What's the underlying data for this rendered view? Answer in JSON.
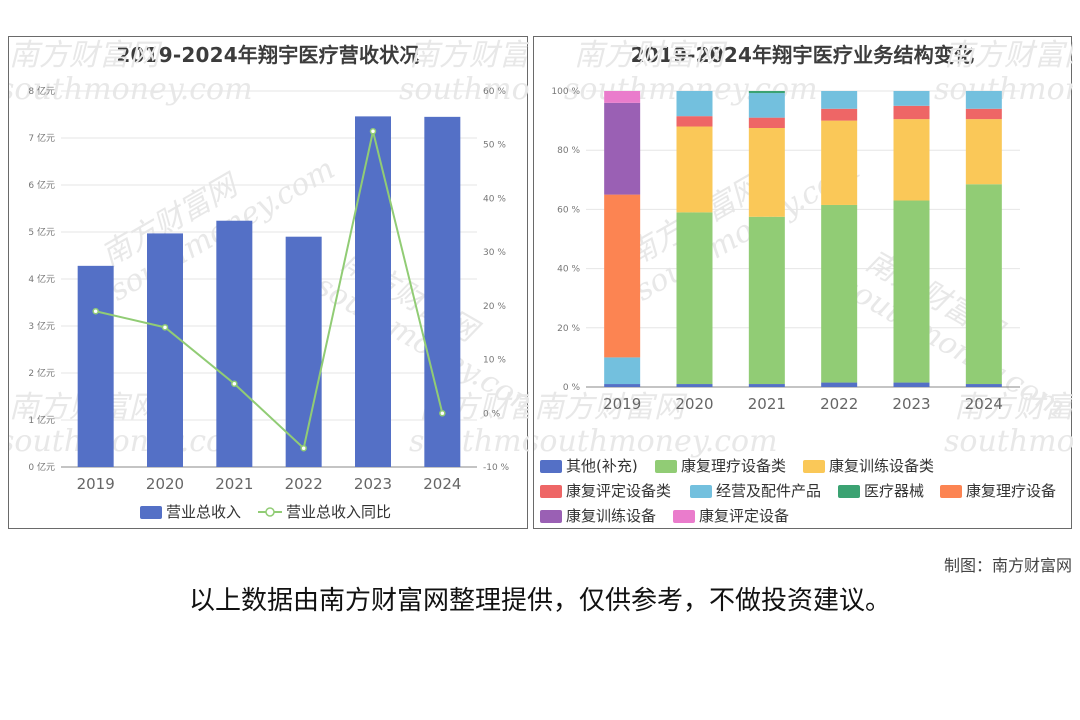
{
  "chart_data": [
    {
      "type": "bar+line",
      "title": "2019-2024年翔宇医疗营收状况",
      "categories": [
        "2019",
        "2020",
        "2021",
        "2022",
        "2023",
        "2024"
      ],
      "series": [
        {
          "name": "营业总收入",
          "type": "bar",
          "axis": "left",
          "color": "#5470c6",
          "values": [
            4.28,
            4.97,
            5.24,
            4.9,
            7.46,
            7.45
          ]
        },
        {
          "name": "营业总收入同比",
          "type": "line",
          "axis": "right",
          "color": "#91cc75",
          "values": [
            19.0,
            16.0,
            5.5,
            -6.5,
            52.5,
            0.0
          ]
        }
      ],
      "y_left": {
        "ticks": [
          "0 亿元",
          "1 亿元",
          "2 亿元",
          "3 亿元",
          "4 亿元",
          "5 亿元",
          "6 亿元",
          "7 亿元",
          "8 亿元"
        ],
        "ylim": [
          0,
          8
        ]
      },
      "y_right": {
        "ticks": [
          "-10 %",
          "0 %",
          "10 %",
          "20 %",
          "30 %",
          "40 %",
          "50 %",
          "60 %"
        ],
        "ylim": [
          -10,
          60
        ]
      },
      "grid": true,
      "legend": "bottom-center"
    },
    {
      "type": "stacked-bar",
      "title": "2019-2024年翔宇医疗业务结构变化",
      "categories": [
        "2019",
        "2020",
        "2021",
        "2022",
        "2023",
        "2024"
      ],
      "series": [
        {
          "name": "其他(补充)",
          "color": "#5470c6",
          "values": [
            1.0,
            1.0,
            1.0,
            1.5,
            1.5,
            1.0
          ]
        },
        {
          "name": "康复理疗设备类",
          "color": "#91cc75",
          "values": [
            0,
            58.0,
            56.5,
            60.0,
            61.5,
            67.5
          ]
        },
        {
          "name": "康复训练设备类",
          "color": "#fac858",
          "values": [
            0,
            29.0,
            30.0,
            28.5,
            27.5,
            22.0
          ]
        },
        {
          "name": "康复评定设备类",
          "color": "#ee6666",
          "values": [
            0,
            3.5,
            3.5,
            4.0,
            4.5,
            3.5
          ]
        },
        {
          "name": "经营及配件产品",
          "color": "#73c0de",
          "values": [
            9.0,
            8.5,
            8.3,
            6.0,
            5.0,
            6.0
          ]
        },
        {
          "name": "医疗器械",
          "color": "#3ba272",
          "values": [
            0,
            0,
            0.7,
            0,
            0,
            0
          ]
        },
        {
          "name": "康复理疗设备",
          "color": "#fc8452",
          "values": [
            55.0,
            0,
            0,
            0,
            0,
            0
          ]
        },
        {
          "name": "康复训练设备",
          "color": "#9a60b4",
          "values": [
            31.0,
            0,
            0,
            0,
            0,
            0
          ]
        },
        {
          "name": "康复评定设备",
          "color": "#ea7ccc",
          "values": [
            4.0,
            0,
            0,
            0,
            0,
            0
          ]
        }
      ],
      "y": {
        "ticks": [
          "0 %",
          "20 %",
          "40 %",
          "60 %",
          "80 %",
          "100 %"
        ],
        "ylim": [
          0,
          100
        ]
      },
      "grid": true,
      "legend": "bottom"
    }
  ],
  "watermark": {
    "cn": "南方财富网",
    "en": "southmoney.com"
  },
  "footer": {
    "credit": "制图：南方财富网",
    "disclaimer": "以上数据由南方财富网整理提供，仅供参考，不做投资建议。"
  }
}
